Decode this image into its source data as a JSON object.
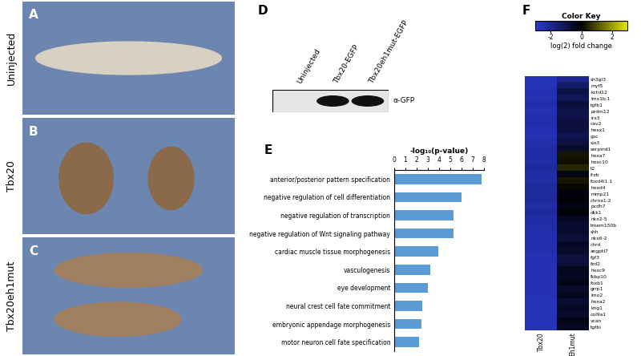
{
  "photos": [
    {
      "panel": "A",
      "label": "Uninjected"
    },
    {
      "panel": "B",
      "label": "Tbx20"
    },
    {
      "panel": "C",
      "label": "Tbx20eh1mut"
    }
  ],
  "blot": {
    "panel": "D",
    "lanes": [
      "Uninjected",
      "Tbx20-EGFP",
      "Tbx20eh1mut-EGFP"
    ],
    "antibody": "α-GFP"
  },
  "chart_data": [
    {
      "panel": "E",
      "type": "bar",
      "orientation": "horizontal",
      "title": "-log₁₀(p-value)",
      "categories": [
        "anterior/posterior pattern specification",
        "negative regulation of cell differentiation",
        "negative regulation of transcription",
        "negative regulation of Wnt signaling pathway",
        "cardiac muscle tissue morphogenesis",
        "vasculogenesis",
        "eye development",
        "neural crest cell fate commitment",
        "embryonic appendage morphogenesis",
        "motor neuron cell fate specification"
      ],
      "values": [
        7.8,
        6.0,
        5.3,
        5.25,
        3.9,
        3.2,
        3.0,
        2.5,
        2.4,
        2.2
      ],
      "color": "#5b9bd5",
      "xlim": [
        0,
        8
      ],
      "xticks": [
        0,
        1,
        2,
        3,
        4,
        5,
        6,
        7,
        8
      ]
    },
    {
      "panel": "F",
      "type": "heatmap",
      "title": "Color Key",
      "colorbar_label": "log(2) fold change",
      "columns": [
        "Tbx20",
        "Eh1mut"
      ],
      "rows": [
        "sh3gl3",
        "myf5",
        "kctd12",
        "lmx1b.1",
        "tgfb1",
        "prdm12",
        "irx3",
        "cav2",
        "hesx1",
        "gsc",
        "six3",
        "serpind1",
        "hoxa7",
        "hoxc10",
        "t2",
        "frzb",
        "foxd4l1.1",
        "hoxd4",
        "mmp21",
        "chrna1.2",
        "pcdh7",
        "dkk1",
        "nkx2-5",
        "tmem150b",
        "shh",
        "nkx6-2",
        "chrd",
        "angptl7",
        "fgf3",
        "fzd2",
        "hoxc9",
        "fkbp10",
        "foxb1",
        "grrp1",
        "lmo2",
        "hoxa2",
        "kng1",
        "col9a1",
        "vcan",
        "tgfbi"
      ],
      "cells": [
        [
          -2.6,
          -2.0
        ],
        [
          -2.6,
          -1.5
        ],
        [
          -2.5,
          -1.0
        ],
        [
          -2.5,
          -1.2
        ],
        [
          -2.4,
          -0.8
        ],
        [
          -2.5,
          -1.0
        ],
        [
          -2.4,
          -1.0
        ],
        [
          -2.4,
          -0.8
        ],
        [
          -2.5,
          -0.9
        ],
        [
          -2.5,
          -1.1
        ],
        [
          -2.4,
          -0.9
        ],
        [
          -2.3,
          -0.6
        ],
        [
          -2.3,
          0.3
        ],
        [
          -2.3,
          0.2
        ],
        [
          -2.2,
          0.5
        ],
        [
          -2.3,
          -0.3
        ],
        [
          -2.3,
          0.3
        ],
        [
          -2.2,
          0.1
        ],
        [
          -2.2,
          -0.2
        ],
        [
          -2.2,
          -0.1
        ],
        [
          -2.3,
          -0.3
        ],
        [
          -2.2,
          -0.1
        ],
        [
          -2.3,
          -0.5
        ],
        [
          -2.3,
          -0.7
        ],
        [
          -2.4,
          -0.6
        ],
        [
          -2.4,
          -0.8
        ],
        [
          -2.4,
          -0.5
        ],
        [
          -2.4,
          -0.6
        ],
        [
          -2.5,
          -0.9
        ],
        [
          -2.5,
          -0.8
        ],
        [
          -2.5,
          -0.4
        ],
        [
          -2.5,
          -0.5
        ],
        [
          -2.5,
          -0.3
        ],
        [
          -2.5,
          -0.6
        ],
        [
          -2.5,
          -0.4
        ],
        [
          -2.6,
          -0.7
        ],
        [
          -2.6,
          -0.5
        ],
        [
          -2.6,
          -0.6
        ],
        [
          -2.6,
          -0.3
        ],
        [
          -2.6,
          -0.5
        ]
      ],
      "colorbar_lim": [
        -3,
        3
      ],
      "colorbar_ticks": [
        -2,
        0,
        2
      ]
    }
  ]
}
